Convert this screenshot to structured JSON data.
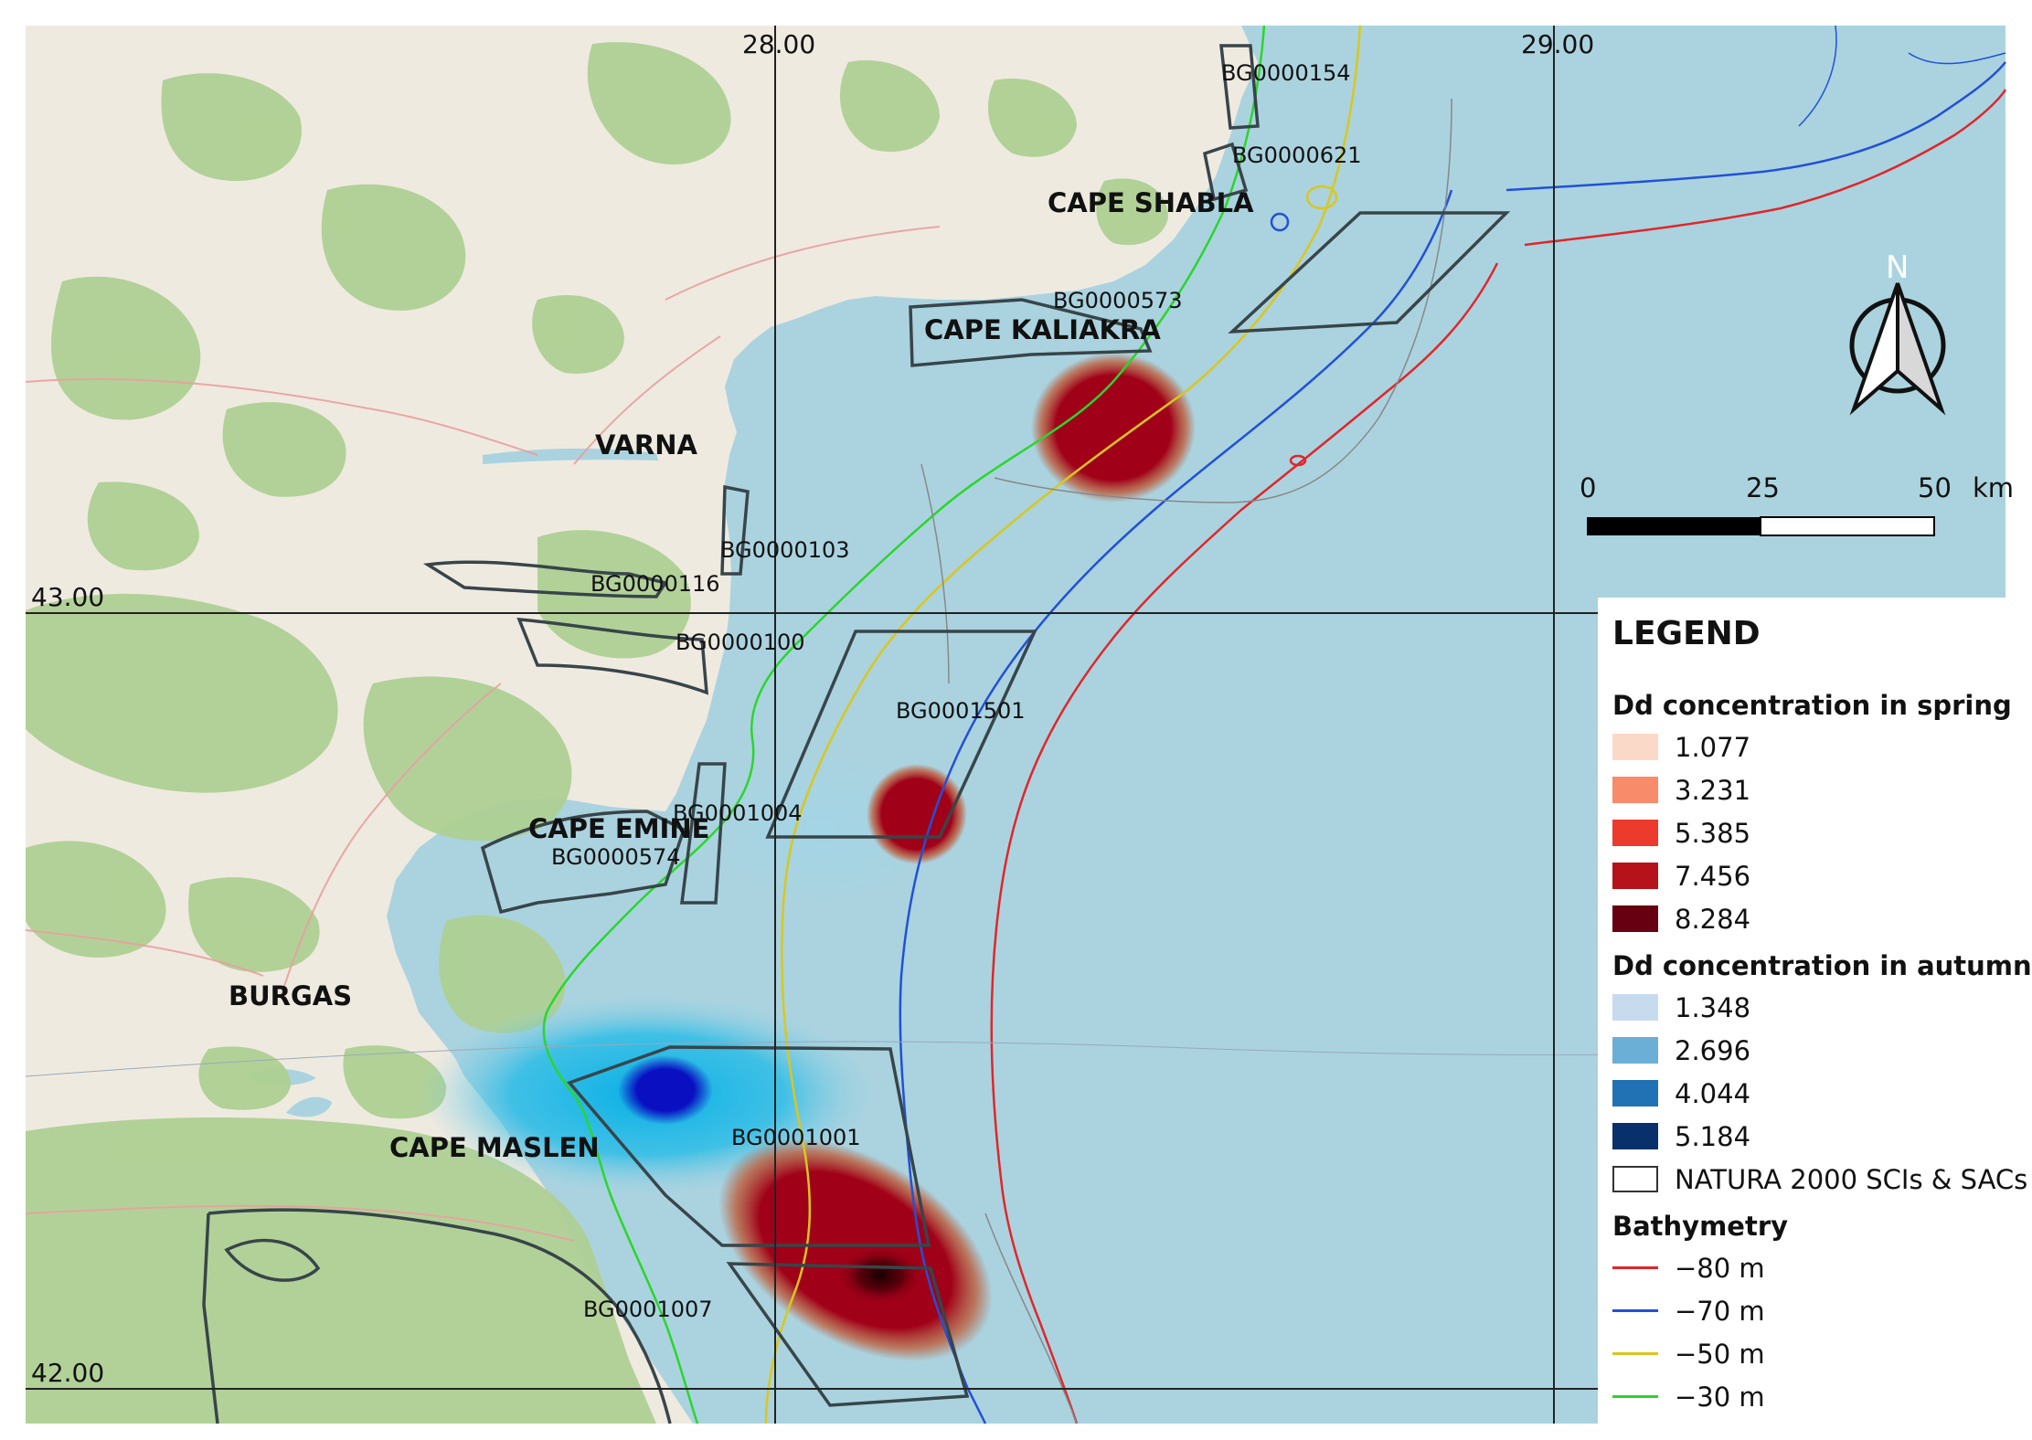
{
  "coordinates": {
    "lon_28": "28.00",
    "lon_29": "29.00",
    "lat_43": "43.00",
    "lat_42": "42.00"
  },
  "places": {
    "cape_shabla": "CAPE SHABLA",
    "cape_kaliakra": "CAPE KALIAKRA",
    "varna": "VARNA",
    "cape_emine": "CAPE EMINE",
    "burgas": "BURGAS",
    "cape_maslen": "CAPE MASLEN"
  },
  "sites": {
    "bg0000154": "BG0000154",
    "bg0000621": "BG0000621",
    "bg0000573": "BG0000573",
    "bg0000103": "BG0000103",
    "bg0000116": "BG0000116",
    "bg0000100": "BG0000100",
    "bg0001501": "BG0001501",
    "bg0001004": "BG0001004",
    "bg0000574": "BG0000574",
    "bg0001001": "BG0001001",
    "bg0001007": "BG0001007"
  },
  "north_arrow": {
    "label": "N",
    "icon": "north-arrow-icon"
  },
  "scale_bar": {
    "tick_0": "0",
    "tick_25": "25",
    "tick_50": "50",
    "unit": "km"
  },
  "legend": {
    "title": "LEGEND",
    "spring": {
      "heading": "Dd concentration in spring",
      "items": [
        {
          "label": "1.077",
          "color": "#fbd9c8"
        },
        {
          "label": "3.231",
          "color": "#f88b6a"
        },
        {
          "label": "5.385",
          "color": "#ec3a2c"
        },
        {
          "label": "7.456",
          "color": "#b5121b"
        },
        {
          "label": "8.284",
          "color": "#670010"
        }
      ]
    },
    "autumn": {
      "heading": "Dd concentration in autumn",
      "items": [
        {
          "label": "1.348",
          "color": "#c7dbef"
        },
        {
          "label": "2.696",
          "color": "#6baed6"
        },
        {
          "label": "4.044",
          "color": "#2171b5"
        },
        {
          "label": "5.184",
          "color": "#08306b"
        }
      ]
    },
    "natura": {
      "label": "NATURA 2000 SCIs & SACs"
    },
    "bathymetry": {
      "heading": "Bathymetry",
      "items": [
        {
          "label": "−80 m",
          "color": "#e0262a"
        },
        {
          "label": "−70 m",
          "color": "#2250d8"
        },
        {
          "label": "−50 m",
          "color": "#d9c71e"
        },
        {
          "label": "−30 m",
          "color": "#2bd62b"
        }
      ]
    }
  },
  "colors": {
    "sea": "#aad3df",
    "land": "#efeae0",
    "forest": "#aed094",
    "hotspot_spring": "#a00018",
    "hotspot_autumn": "#0a0fc2"
  }
}
